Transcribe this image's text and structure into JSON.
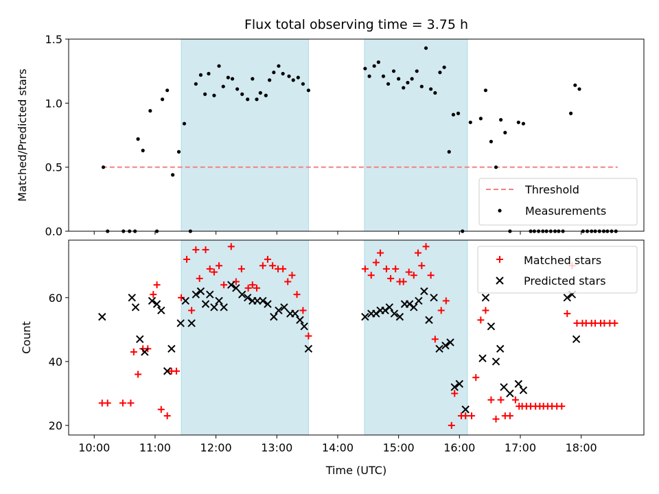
{
  "chart_data": [
    {
      "type": "scatter",
      "title": "Flux total observing time = 3.75 h",
      "ylabel": "Matched/Predicted stars",
      "xlabel": "",
      "ylim": [
        0,
        1.5
      ],
      "yticks": [
        0.0,
        0.5,
        1.0,
        1.5
      ],
      "ytick_labels": [
        "0.0",
        "0.5",
        "1.0",
        "1.5"
      ],
      "xlim": [
        9.58,
        19.03
      ],
      "xticks": [
        10,
        11,
        12,
        13,
        14,
        15,
        16,
        17,
        18
      ],
      "shaded_spans": [
        [
          11.43,
          13.52
        ],
        [
          14.44,
          16.13
        ]
      ],
      "shade_color": "#d3e9f0",
      "threshold": {
        "name": "Threshold",
        "value": 0.5,
        "x_range": [
          10.13,
          18.6
        ],
        "color": "#f08080"
      },
      "series": [
        {
          "name": "Measurements",
          "color": "#000000",
          "x": [
            10.15,
            10.22,
            10.48,
            10.58,
            10.67,
            10.72,
            10.8,
            10.92,
            11.03,
            11.12,
            11.2,
            11.29,
            11.39,
            11.48,
            11.58,
            11.67,
            11.75,
            11.82,
            11.88,
            11.97,
            12.05,
            12.12,
            12.2,
            12.27,
            12.35,
            12.43,
            12.52,
            12.6,
            12.67,
            12.73,
            12.82,
            12.88,
            12.95,
            13.03,
            13.1,
            13.2,
            13.27,
            13.35,
            13.43,
            13.52,
            14.45,
            14.52,
            14.6,
            14.67,
            14.75,
            14.83,
            14.92,
            15.0,
            15.08,
            15.15,
            15.22,
            15.3,
            15.38,
            15.45,
            15.53,
            15.6,
            15.68,
            15.75,
            15.83,
            15.9,
            15.98,
            16.05,
            16.18,
            16.35,
            16.43,
            16.52,
            16.6,
            16.68,
            16.75,
            16.83,
            16.97,
            17.05,
            17.17,
            17.23,
            17.3,
            17.37,
            17.43,
            17.5,
            17.57,
            17.63,
            17.7,
            17.83,
            17.9,
            17.97,
            18.03,
            18.1,
            18.17,
            18.23,
            18.3,
            18.37,
            18.43,
            18.5,
            18.57
          ],
          "y": [
            0.5,
            0.0,
            0.0,
            0.0,
            0.0,
            0.72,
            0.63,
            0.94,
            0.0,
            1.03,
            1.1,
            0.44,
            0.62,
            0.84,
            0.0,
            1.15,
            1.22,
            1.07,
            1.23,
            1.06,
            1.29,
            1.13,
            1.2,
            1.19,
            1.11,
            1.07,
            1.03,
            1.19,
            1.03,
            1.08,
            1.06,
            1.18,
            1.24,
            1.29,
            1.23,
            1.21,
            1.18,
            1.2,
            1.15,
            1.1,
            1.27,
            1.21,
            1.29,
            1.32,
            1.21,
            1.15,
            1.25,
            1.19,
            1.12,
            1.16,
            1.19,
            1.25,
            1.13,
            1.43,
            1.11,
            1.08,
            1.24,
            1.28,
            0.62,
            0.91,
            0.92,
            0.0,
            0.85,
            0.88,
            1.1,
            0.7,
            0.5,
            0.87,
            0.77,
            0.0,
            0.85,
            0.84,
            0.0,
            0.0,
            0.0,
            0.0,
            0.0,
            0.0,
            0.0,
            0.0,
            0.0,
            0.92,
            1.14,
            1.11,
            0.0,
            0.0,
            0.0,
            0.0,
            0.0,
            0.0,
            0.0,
            0.0,
            0.0
          ]
        }
      ],
      "legend": {
        "placement": "lower right",
        "entries": [
          "Threshold",
          "Measurements"
        ]
      }
    },
    {
      "type": "scatter",
      "title": "",
      "ylabel": "Count",
      "xlabel": "Time (UTC)",
      "ylim": [
        17,
        78
      ],
      "yticks": [
        20,
        40,
        60
      ],
      "ytick_labels": [
        "20",
        "40",
        "60"
      ],
      "xlim": [
        9.58,
        19.03
      ],
      "xticks": [
        10,
        11,
        12,
        13,
        14,
        15,
        16,
        17,
        18
      ],
      "xtick_labels": [
        "10:00",
        "11:00",
        "12:00",
        "13:00",
        "14:00",
        "15:00",
        "16:00",
        "17:00",
        "18:00"
      ],
      "shaded_spans": [
        [
          11.43,
          13.52
        ],
        [
          14.44,
          16.13
        ]
      ],
      "shade_color": "#d3e9f0",
      "series": [
        {
          "name": "Matched stars",
          "marker": "plus",
          "color": "#ff0000",
          "x": [
            10.13,
            10.22,
            10.47,
            10.6,
            10.65,
            10.72,
            10.8,
            10.88,
            10.97,
            11.03,
            11.1,
            11.2,
            11.27,
            11.35,
            11.43,
            11.52,
            11.6,
            11.67,
            11.73,
            11.83,
            11.9,
            11.97,
            12.05,
            12.13,
            12.25,
            12.33,
            12.42,
            12.53,
            12.6,
            12.67,
            12.77,
            12.85,
            12.93,
            13.02,
            13.1,
            13.18,
            13.25,
            13.33,
            13.43,
            13.52,
            14.45,
            14.55,
            14.63,
            14.7,
            14.8,
            14.87,
            14.95,
            15.02,
            15.08,
            15.17,
            15.25,
            15.32,
            15.38,
            15.45,
            15.53,
            15.6,
            15.7,
            15.78,
            15.87,
            15.92,
            16.03,
            16.1,
            16.2,
            16.27,
            16.35,
            16.43,
            16.52,
            16.6,
            16.68,
            16.75,
            16.83,
            16.92,
            16.98,
            17.03,
            17.1,
            17.17,
            17.25,
            17.32,
            17.38,
            17.45,
            17.52,
            17.6,
            17.68,
            17.77,
            17.85,
            17.93,
            18.02,
            18.08,
            18.17,
            18.23,
            18.32,
            18.38,
            18.47,
            18.55
          ],
          "y": [
            27,
            27,
            27,
            27,
            43,
            36,
            44,
            44,
            61,
            64,
            25,
            23,
            37,
            37,
            60,
            72,
            56,
            75,
            66,
            75,
            69,
            68,
            70,
            64,
            76,
            65,
            69,
            63,
            64,
            63,
            70,
            72,
            70,
            69,
            69,
            65,
            67,
            61,
            56,
            48,
            69,
            67,
            71,
            74,
            69,
            66,
            69,
            65,
            65,
            68,
            67,
            74,
            70,
            76,
            67,
            47,
            56,
            59,
            20,
            30,
            23,
            23,
            23,
            35,
            53,
            56,
            28,
            22,
            28,
            23,
            23,
            28,
            26,
            26,
            26,
            26,
            26,
            26,
            26,
            26,
            26,
            26,
            26,
            55,
            70,
            52,
            52,
            52,
            52,
            52,
            52,
            52,
            52,
            52
          ]
        },
        {
          "name": "Predicted stars",
          "marker": "x",
          "color": "#000000",
          "x": [
            10.13,
            10.62,
            10.68,
            10.75,
            10.83,
            10.95,
            11.03,
            11.1,
            11.2,
            11.27,
            11.42,
            11.5,
            11.6,
            11.67,
            11.75,
            11.83,
            11.9,
            11.97,
            12.05,
            12.13,
            12.25,
            12.33,
            12.43,
            12.52,
            12.6,
            12.68,
            12.77,
            12.85,
            12.95,
            13.03,
            13.12,
            13.22,
            13.3,
            13.38,
            13.45,
            13.52,
            14.45,
            14.55,
            14.63,
            14.7,
            14.78,
            14.85,
            14.93,
            15.02,
            15.1,
            15.18,
            15.25,
            15.33,
            15.42,
            15.5,
            15.58,
            15.67,
            15.77,
            15.85,
            15.92,
            16.0,
            16.1,
            16.38,
            16.43,
            16.52,
            16.6,
            16.67,
            16.73,
            16.83,
            16.97,
            17.05,
            17.77,
            17.85,
            17.92
          ],
          "y": [
            54,
            60,
            57,
            47,
            43,
            59,
            58,
            56,
            37,
            44,
            52,
            59,
            52,
            61,
            62,
            58,
            61,
            57,
            59,
            57,
            64,
            63,
            61,
            60,
            59,
            59,
            59,
            58,
            54,
            56,
            57,
            55,
            55,
            53,
            51,
            44,
            54,
            55,
            55,
            56,
            56,
            57,
            55,
            54,
            58,
            58,
            57,
            59,
            62,
            53,
            60,
            44,
            45,
            46,
            32,
            33,
            25,
            41,
            60,
            51,
            40,
            44,
            32,
            30,
            33,
            31,
            60,
            61,
            47
          ]
        }
      ],
      "legend": {
        "placement": "upper right",
        "entries": [
          "Matched stars",
          "Predicted stars"
        ]
      }
    }
  ]
}
